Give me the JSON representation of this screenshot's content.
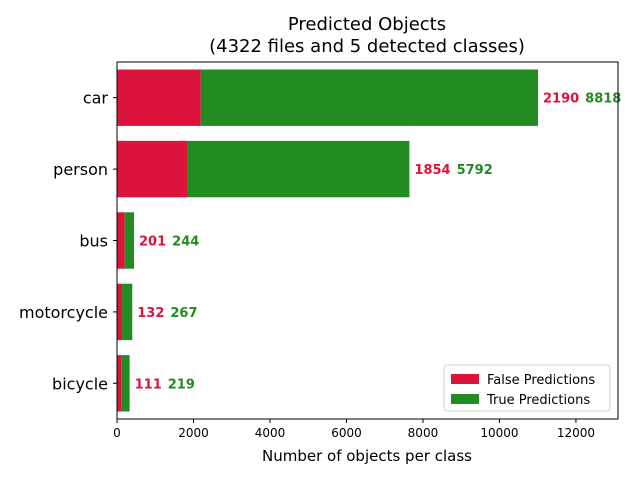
{
  "chart_data": {
    "type": "bar",
    "orientation": "horizontal",
    "stacked": true,
    "title": "Predicted Objects",
    "subtitle": "(4322 files and 5 detected classes)",
    "xlabel": "Number of objects per class",
    "ylabel": "",
    "xlim": [
      0,
      13100
    ],
    "xticks": [
      0,
      2000,
      4000,
      6000,
      8000,
      10000,
      12000
    ],
    "categories": [
      "car",
      "person",
      "bus",
      "motorcycle",
      "bicycle"
    ],
    "series": [
      {
        "name": "False Predictions",
        "color": "#dc143c",
        "values": [
          2190,
          1854,
          201,
          132,
          111
        ]
      },
      {
        "name": "True Predictions",
        "color": "#228b22",
        "values": [
          8818,
          5792,
          244,
          267,
          219
        ]
      }
    ],
    "legend_position": "lower-right",
    "grid": false
  }
}
